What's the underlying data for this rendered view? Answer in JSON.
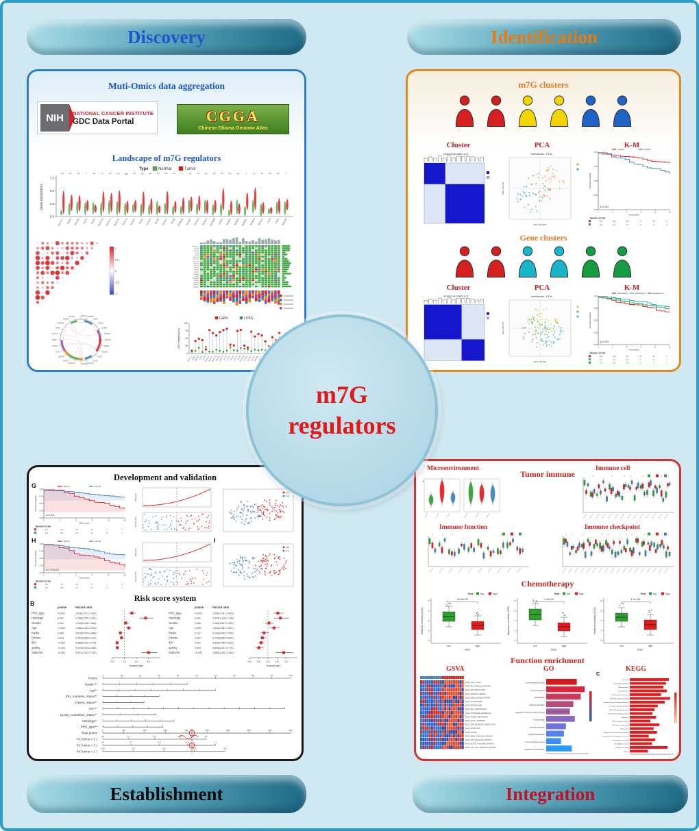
{
  "banners": {
    "discovery": "Discovery",
    "identification": "Identification",
    "establishment": "Establishment",
    "integration": "Integration"
  },
  "center": {
    "line1": "m7G",
    "line2": "regulators"
  },
  "km_yticks": [
    "1.00",
    "0.75",
    "0.50",
    "0.25",
    "0.00"
  ],
  "discovery": {
    "aggregation_title": "Muti-Omics data aggregation",
    "nih": {
      "acronym": "NIH",
      "institute": "NATIONAL CANCER INSTITUTE",
      "portal": "GDC Data Portal"
    },
    "cgga": {
      "acronym": "CGGA",
      "subtitle": "Chinese Glioma Genome Atlas"
    },
    "landscape_title": "Landscape of m7G regulators",
    "violin": {
      "legend_title": "Type",
      "legend": [
        "Normal",
        "Tumor"
      ],
      "ylabel": "Gene expression",
      "yticks": [
        "7.5",
        "5.0",
        "2.5",
        "0.0"
      ],
      "genes": [
        "METTL1",
        "WDR4",
        "NSUN2",
        "DCP2",
        "DCPS",
        "NUDT10",
        "NUDT11",
        "NUDT16",
        "NUDT3",
        "NUDT4",
        "AGO2",
        "CYFIP1",
        "EIF3D",
        "EIF4A1",
        "EIF4E",
        "EIF4E1B",
        "EIF4E2",
        "EIF4E3",
        "EIF4G3",
        "GEMIN5",
        "LARP1",
        "NCBP1",
        "NCBP2",
        "NCBP2L",
        "NCBP3",
        "EIF4G1",
        "IFIT5",
        "LSM1",
        "SNUPN"
      ],
      "sig": [
        "***",
        "***",
        "***",
        "*",
        "***",
        "**",
        "***",
        "***",
        "ns",
        "***",
        "***",
        "***",
        "***",
        "***",
        "***",
        "*",
        "***",
        "**",
        "***",
        "***",
        "***",
        "***",
        "***",
        "*",
        "**",
        "***",
        "***",
        "***",
        "*"
      ]
    },
    "cnv": {
      "legend": [
        "GAIN",
        "LOSS"
      ],
      "ylabel": "CNV.frequency(%)",
      "yticks": [
        "100",
        "75",
        "50",
        "25",
        "0"
      ]
    }
  },
  "identification": {
    "m7g_clusters_title": "m7G clusters",
    "gene_clusters_title": "Gene clusters",
    "col_labels": {
      "cluster": "Cluster",
      "pca": "PCA",
      "km": "K-M"
    },
    "persons_row1": [
      "#d42020",
      "#d42020",
      "#f2d500",
      "#f2d500",
      "#1f63c4",
      "#1f63c4"
    ],
    "persons_row2": [
      "#d42020",
      "#d42020",
      "#18b4c9",
      "#18b4c9",
      "#169c40",
      "#169c40"
    ],
    "consensus1_title": "consensus matrix k=2",
    "consensus2_title": "consensus matrix k=3",
    "pca_title": "Individuals - PCA",
    "pca_axes": [
      "Dim1 (38.2%)",
      "Dim2 (18.7%)"
    ],
    "km1": {
      "p": "p<0.001",
      "ylabel": "Survival probability",
      "xlabel": "Time(years)",
      "risk_label": "Number at risk",
      "groups": [
        {
          "name": "Cluster1",
          "color": "#e41a1c",
          "rate": 2.2
        },
        {
          "name": "Cluster2",
          "color": "#3a7fc1",
          "rate": 4.2
        }
      ],
      "risk_rows": [
        "326 214 135 72 28 6",
        "332 150 64 22 5 0"
      ]
    },
    "km2": {
      "p": "p<0.001",
      "ylabel": "Survival probability",
      "xlabel": "Time(years)",
      "risk_label": "Number at risk",
      "groups": [
        {
          "name": "geneCluster A",
          "color": "#e41a1c",
          "rate": 4.0
        },
        {
          "name": "geneCluster B",
          "color": "#18b4c9",
          "rate": 2.6
        },
        {
          "name": "geneCluster C",
          "color": "#169c40",
          "rate": 1.8
        }
      ],
      "risk_rows": [
        "214 150 94 48 18 3",
        "226 168 102 51 20 4",
        "218 122 58 21 6 0"
      ]
    }
  },
  "establishment": {
    "dev_title": "Development and validation",
    "risk_title": "Risk score system",
    "letters": {
      "g": "G",
      "h": "H",
      "i": "I",
      "b": "B"
    },
    "kmG": {
      "p": "p<0.001",
      "ylabel": "Survival probability",
      "xlabel": "Time(years)",
      "risk_label": "Number at risk",
      "ci": true,
      "groups": [
        {
          "name": "High risk",
          "color": "#e41a1c",
          "rate": 5.2
        },
        {
          "name": "Low risk",
          "color": "#3a7fc1",
          "rate": 1.6
        }
      ],
      "risk_rows": [
        "337 118 40 12 3 0",
        "336 226 132 61 18 2"
      ]
    },
    "kmH": {
      "p": "p=1.272e-02",
      "ylabel": "Survival probability",
      "xlabel": "Time(years)",
      "risk_label": "Number at risk",
      "ci": true,
      "groups": [
        {
          "name": "High risk",
          "color": "#e41a1c",
          "rate": 4.6
        },
        {
          "name": "Low risk",
          "color": "#3a7fc1",
          "rate": 2.0
        }
      ],
      "risk_rows": [
        "162 58 20 6 1 0",
        "163 108 66 29 9 1"
      ]
    },
    "risk_panel": {
      "ylabel_top": "Risk score",
      "ylabel_bottom": "Survival time"
    },
    "tsne_legend": [
      "High",
      "Low"
    ],
    "forest_left": {
      "col_p": "pvalue",
      "col_hr": "Hazard ratio",
      "range": [
        0,
        4
      ],
      "ticks": [
        "0.0",
        "1.0",
        "2.0",
        "3.0"
      ],
      "rows": [
        {
          "label": "PRS_type",
          "p": "<0.001",
          "hr": "1.616(1.371-1.905)",
          "v": 1.62,
          "lo": 1.37,
          "hi": 1.91
        },
        {
          "label": "Histology",
          "p": "0.002",
          "hr": "2.768(2.239-3.422)",
          "v": 2.77,
          "lo": 2.24,
          "hi": 3.42
        },
        {
          "label": "Gender",
          "p": "0.302",
          "hr": "1.113(0.906-1.364)",
          "v": 1.11,
          "lo": 0.91,
          "hi": 1.36
        },
        {
          "label": "Age",
          "p": "<0.001",
          "hr": "1.355(1.151-1.593)",
          "v": 1.36,
          "lo": 1.15,
          "hi": 1.59
        },
        {
          "label": "Radio",
          "p": "0.005",
          "hr": "0.674(0.515-0.868)",
          "v": 0.67,
          "lo": 0.52,
          "hi": 0.87
        },
        {
          "label": "Chemo",
          "p": "0.004",
          "hr": "0.762(0.635-0.916)",
          "v": 0.76,
          "lo": 0.64,
          "hi": 0.92
        },
        {
          "label": "IDH",
          "p": "<0.001",
          "hr": "0.385(0.311-0.475)",
          "v": 0.39,
          "lo": 0.31,
          "hi": 0.48
        },
        {
          "label": "1p19q",
          "p": "<0.001",
          "hr": "0.412(0.304-0.558)",
          "v": 0.41,
          "lo": 0.3,
          "hi": 0.56
        },
        {
          "label": "radscore",
          "p": "<0.001",
          "hr": "3.021(2.433-3.752)",
          "v": 3.02,
          "lo": 2.43,
          "hi": 3.75
        }
      ]
    },
    "forest_right": {
      "col_p": "pvalue",
      "col_hr": "Hazard ratio",
      "range": [
        0,
        2.6
      ],
      "ticks": [
        "0.0",
        "0.5",
        "1.0",
        "1.5",
        "2.0"
      ],
      "rows": [
        {
          "label": "PRS_type",
          "p": "<0.001",
          "hr": "1.540(1.297-1.829)",
          "v": 1.54,
          "lo": 1.3,
          "hi": 1.83
        },
        {
          "label": "Histology",
          "p": "0.001",
          "hr": "1.676(1.316-2.135)",
          "v": 1.68,
          "lo": 1.32,
          "hi": 2.14
        },
        {
          "label": "Gender",
          "p": "0.556",
          "hr": "1.059(0.847-1.323)",
          "v": 1.06,
          "lo": 0.85,
          "hi": 1.32
        },
        {
          "label": "Age",
          "p": "0.006",
          "hr": "1.334(1.087-1.637)",
          "v": 1.33,
          "lo": 1.09,
          "hi": 1.64
        },
        {
          "label": "Radio",
          "p": "0.112",
          "hr": "0.794(0.599-1.053)",
          "v": 0.79,
          "lo": 0.6,
          "hi": 1.05
        },
        {
          "label": "Chemo",
          "p": "0.001",
          "hr": "0.703(0.553-0.894)",
          "v": 0.7,
          "lo": 0.55,
          "hi": 0.89
        },
        {
          "label": "IDH",
          "p": "0.001",
          "hr": "0.632(0.480-0.833)",
          "v": 0.63,
          "lo": 0.48,
          "hi": 0.83
        },
        {
          "label": "1p19q",
          "p": "0.003",
          "hr": "0.505(0.327-0.773)",
          "v": 0.51,
          "lo": 0.33,
          "hi": 0.77
        },
        {
          "label": "radscore",
          "p": "<0.001",
          "hr": "1.856(1.425-2.364)",
          "v": 1.86,
          "lo": 1.43,
          "hi": 2.36
        }
      ]
    },
    "nomogram": {
      "rows": [
        {
          "label": "Points",
          "len": 1,
          "ticks": [
            "0",
            "10",
            "20",
            "30",
            "40",
            "50",
            "60",
            "70",
            "80",
            "90",
            "100"
          ]
        },
        {
          "label": "Grade***",
          "len": 0.45
        },
        {
          "label": "Age**",
          "len": 0.6
        },
        {
          "label": "IDH_mutation_status**",
          "len": 0.3
        },
        {
          "label": "Chemo_status**",
          "len": 0.22
        },
        {
          "label": "rns***",
          "len": 0.97
        },
        {
          "label": "1p19q_codeletion_status**",
          "len": 0.28
        },
        {
          "label": "Histology**",
          "len": 0.38
        },
        {
          "label": "PRS_type**",
          "len": 0.32
        },
        {
          "label": "Total points",
          "len": 1,
          "ticks": [
            "0",
            "50",
            "100",
            "150",
            "200",
            "250",
            "300",
            "350",
            "400",
            "450"
          ]
        },
        {
          "label": "Pr( futime > 5 )",
          "len": 0.55,
          "ticks": [
            "0.9",
            "0.7",
            "0.5",
            "0.3",
            "0.1"
          ]
        },
        {
          "label": "Pr( futime > 3 )",
          "len": 0.6,
          "ticks": [
            "0.9",
            "0.7",
            "0.5",
            "0.3",
            "0.1"
          ]
        },
        {
          "label": "Pr( futime > 1 )",
          "len": 0.65,
          "ticks": [
            "0.96",
            "0.9",
            "0.8",
            "0.6",
            "0.4"
          ]
        }
      ]
    }
  },
  "integration": {
    "microenvironment": "Microenvironment",
    "tumor_immune": "Tumor immune",
    "immune_cell": "Immune cell",
    "immune_function": "Immune function",
    "immune_checkpoint": "Immune checkpoint",
    "chemotherapy": "Chemotherapy",
    "function_enrichment": "Function enrichment",
    "gsva": "GSVA",
    "go": "GO",
    "kegg": "KEGG",
    "kegg_letter": "C",
    "group_colors": [
      "#2ca02c",
      "#e41a1c",
      "#3a7fc1"
    ],
    "chemo_legend": {
      "title": "Risk",
      "low": "low",
      "high": "high"
    },
    "chemo_xlabel": "Risk",
    "chemo_cats": [
      "low",
      "high"
    ],
    "chemo_panels": [
      {
        "p": "8.63e-05",
        "ylabel": "AZD2014 sensitivity (IC50)"
      },
      {
        "p": "2.2e-09",
        "ylabel": "Rapamycin sensitivity (IC50)"
      },
      {
        "p": "1.2e-06",
        "ylabel": "Sorafenib sensitivity (IC50)"
      }
    ],
    "gsva_rows": [
      "KEGG_CELL_CYCLE",
      "KEGG_P53_SIGNALING_PATHWAY",
      "KEGG_DNA_REPLICATION",
      "KEGG_MISMATCH_REPAIR",
      "KEGG_BASE_EXCISION_REPAIR",
      "KEGG_SPLICEOSOME",
      "KEGG_PROTEASOME",
      "KEGG_RNA_DEGRADATION",
      "KEGG_PYRIMIDINE_METABOLISM",
      "KEGG_PURINE_METABOLISM",
      "KEGG_FOCAL_ADHESION",
      "KEGG_ECM_RECEPTOR_INTERACTION",
      "KEGG_APOPTOSIS",
      "KEGG_GLIOMA",
      "KEGG_MAPK_SIGNALING_PATHWAY",
      "KEGG_WNT_SIGNALING_PATHWAY",
      "KEGG_NOTCH_SIGNALING_PATHWAY",
      "KEGG_JAK_STAT_SIGNALING_PATHWAY"
    ],
    "go_terms": [
      {
        "label": "immune system process",
        "v": 62,
        "color": "#d7191c"
      },
      {
        "label": "immune response",
        "v": 78,
        "color": "#d7263a"
      },
      {
        "label": "cell activation",
        "v": 70,
        "color": "#c93a5c"
      },
      {
        "label": "leukocyte activation",
        "v": 55,
        "color": "#b94a7e"
      },
      {
        "label": "regulation of immune system process",
        "v": 48,
        "color": "#a359a0"
      },
      {
        "label": "T cell activation",
        "v": 58,
        "color": "#8a67c2"
      },
      {
        "label": "cytokine production",
        "v": 40,
        "color": "#6f74e0"
      },
      {
        "label": "lymphocyte activation",
        "v": 36,
        "color": "#5381f2"
      },
      {
        "label": "immune effector process",
        "v": 30,
        "color": "#3b8ef8"
      },
      {
        "label": "regulation of cell adhesion",
        "v": 52,
        "color": "#2b9bfb"
      }
    ],
    "kegg_terms": [
      {
        "label": "Cell cycle",
        "v": 95
      },
      {
        "label": "p53 signaling pathway",
        "v": 88
      },
      {
        "label": "DNA replication",
        "v": 82
      },
      {
        "label": "Focal adhesion",
        "v": 90
      },
      {
        "label": "ECM-receptor interaction",
        "v": 76
      },
      {
        "label": "PI3K-Akt signaling pathway",
        "v": 98
      },
      {
        "label": "Cytokine-cytokine receptor interaction",
        "v": 85
      },
      {
        "label": "Chemokine signaling pathway",
        "v": 68
      },
      {
        "label": "JAK-STAT signaling pathway",
        "v": 60
      },
      {
        "label": "NF-kappa B signaling pathway",
        "v": 55
      },
      {
        "label": "Apoptosis",
        "v": 64
      },
      {
        "label": "HIF-1 signaling pathway",
        "v": 50
      },
      {
        "label": "Cell adhesion molecules",
        "v": 72
      },
      {
        "label": "Phagosome",
        "v": 58
      },
      {
        "label": "Antigen processing and presentation",
        "v": 66
      },
      {
        "label": "Complement and coagulation cascades",
        "v": 46
      },
      {
        "label": "Proteoglycans in cancer",
        "v": 62
      },
      {
        "label": "MicroRNAs in cancer",
        "v": 54
      },
      {
        "label": "Pathways in cancer",
        "v": 92
      },
      {
        "label": "Glioma",
        "v": 44
      }
    ]
  }
}
